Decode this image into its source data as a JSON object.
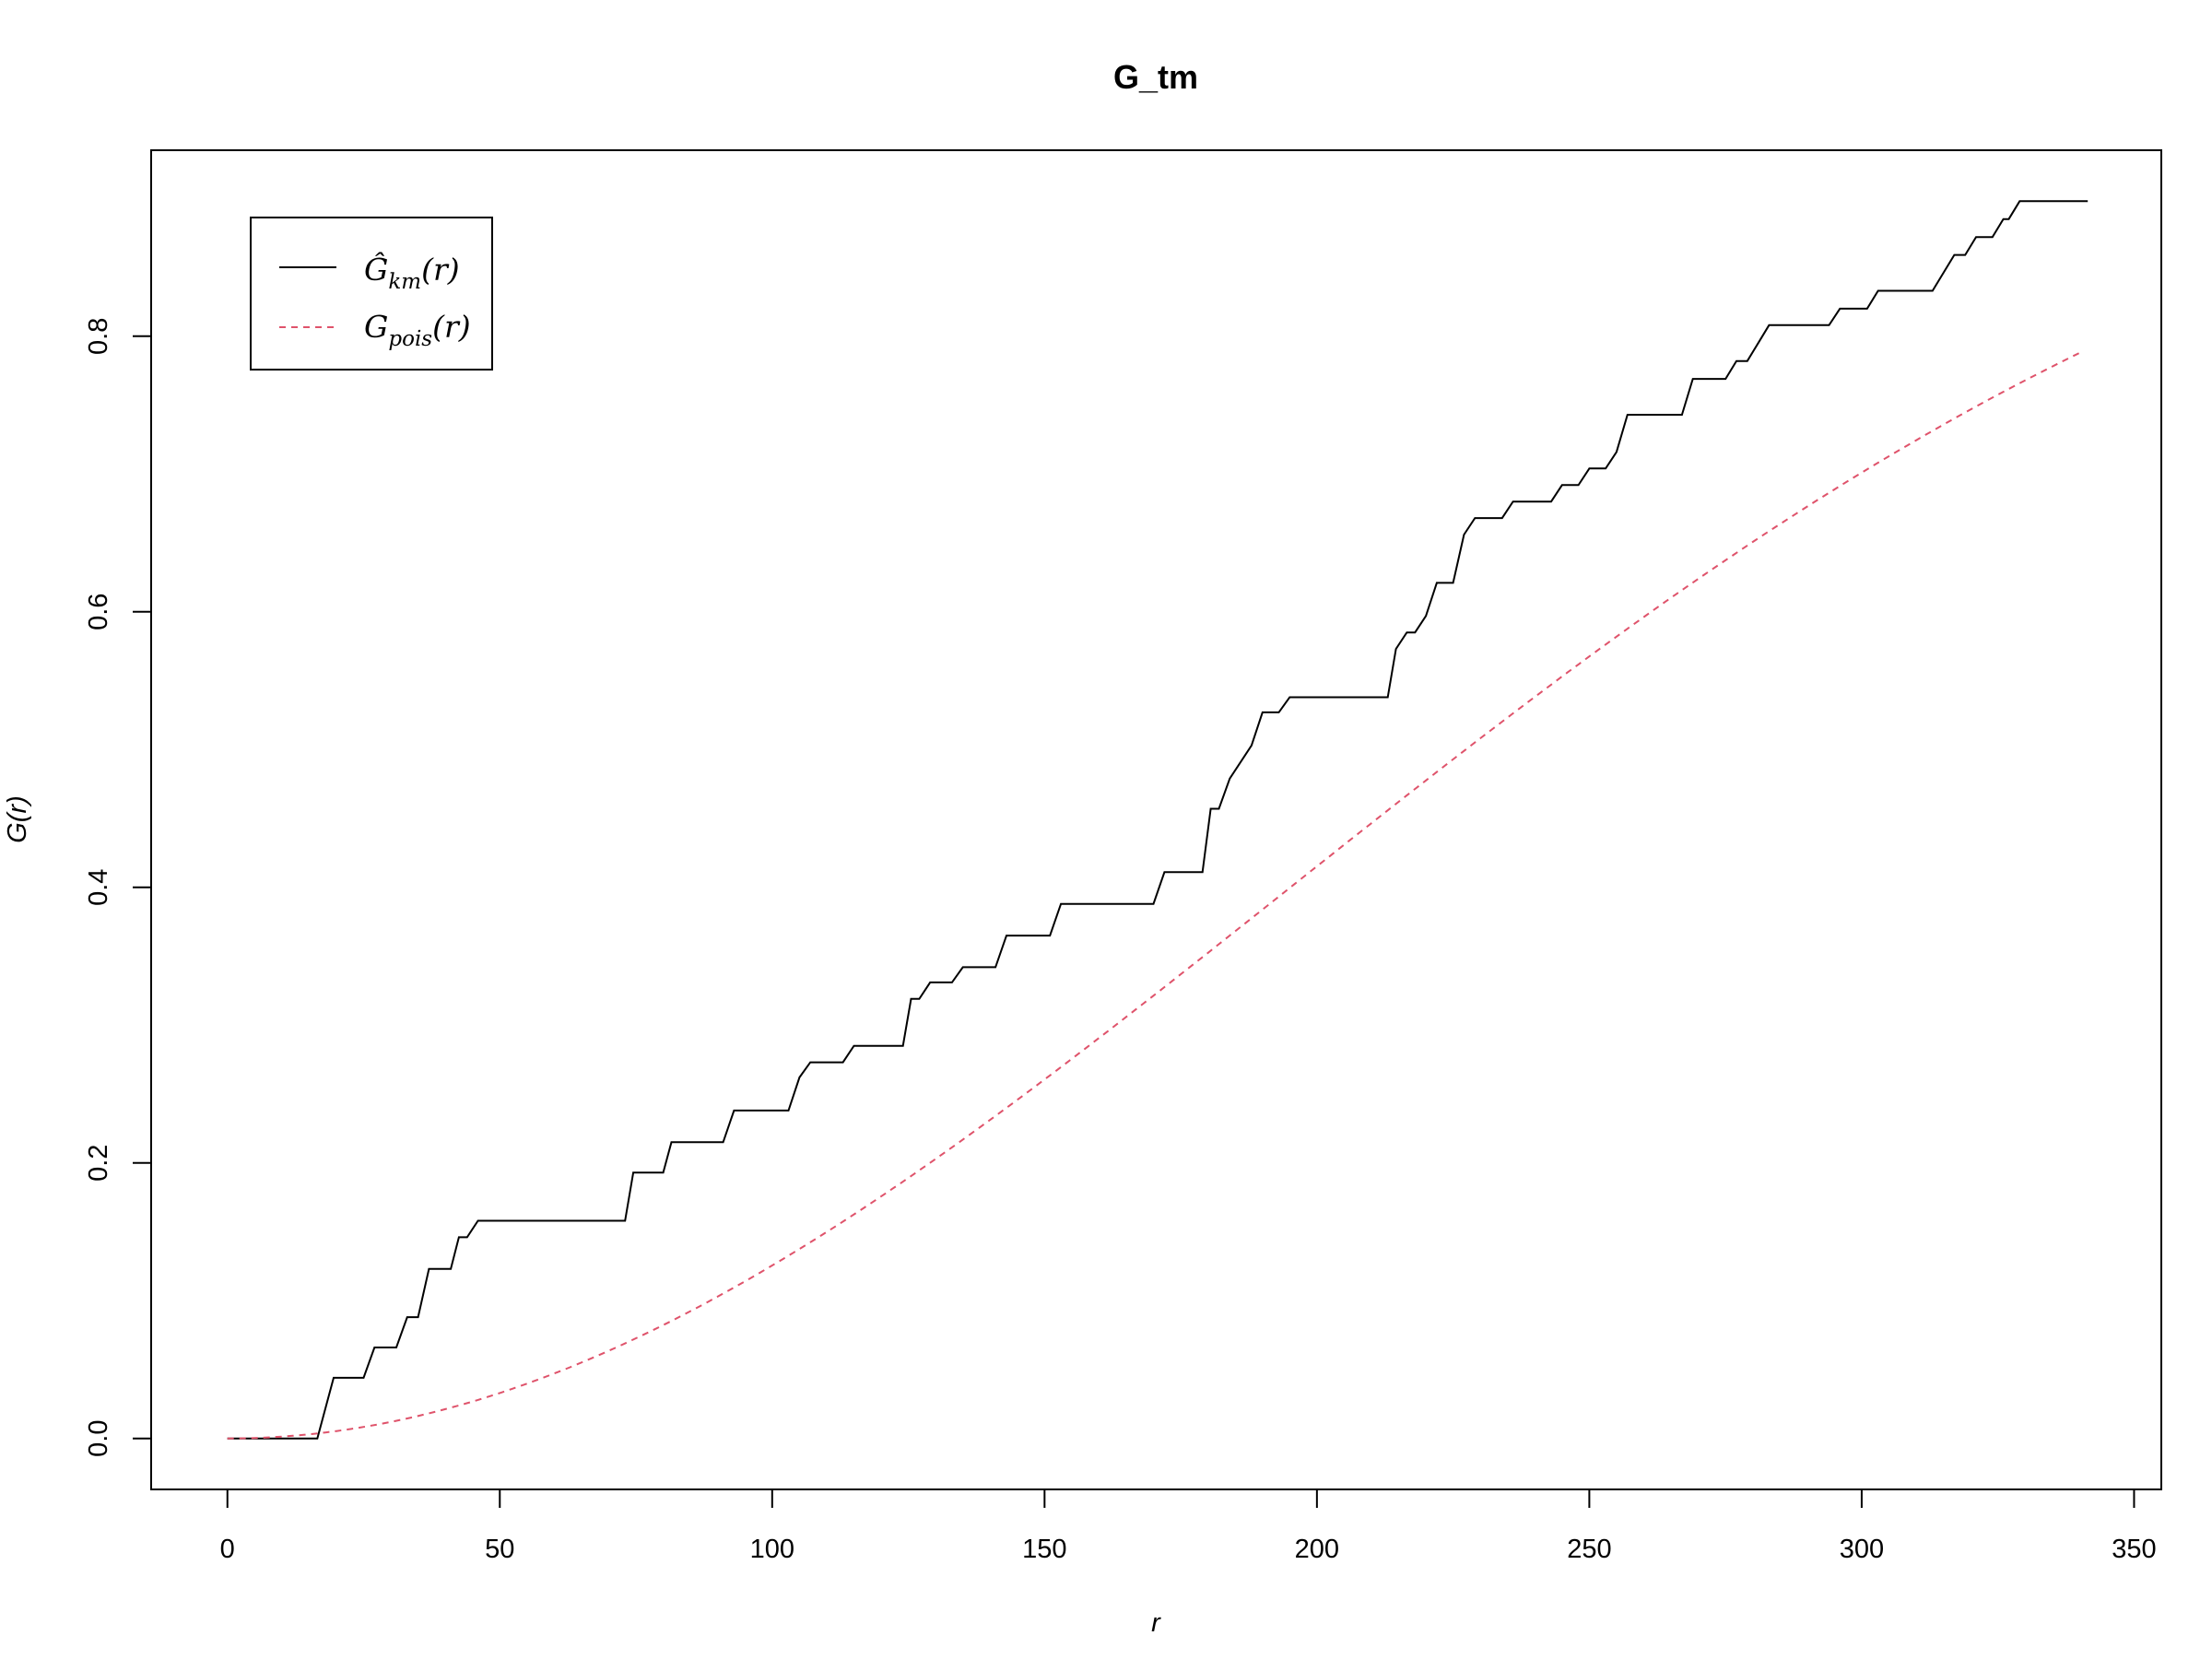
{
  "chart_data": {
    "type": "line",
    "title": "G_tm",
    "xlabel": "r",
    "ylabel": "G(r)",
    "xlim": [
      -14,
      355
    ],
    "ylim": [
      -0.037,
      0.935
    ],
    "x_ticks": [
      0,
      50,
      100,
      150,
      200,
      250,
      300,
      350
    ],
    "y_ticks": [
      0.0,
      0.2,
      0.4,
      0.6,
      0.8
    ],
    "grid": false,
    "legend_position": "top-left",
    "legend": {
      "km": {
        "main": "Ĝ",
        "sub": "km",
        "arg": "(r)"
      },
      "pois": {
        "main": "G",
        "sub": "pois",
        "arg": "(r)"
      }
    },
    "series": [
      {
        "key": "km",
        "color": "#000000",
        "dash": "solid",
        "points": [
          [
            0,
            0.0
          ],
          [
            16.5,
            0.0
          ],
          [
            19.5,
            0.044
          ],
          [
            25,
            0.044
          ],
          [
            27,
            0.066
          ],
          [
            31,
            0.066
          ],
          [
            33,
            0.088
          ],
          [
            35,
            0.088
          ],
          [
            37,
            0.123
          ],
          [
            41,
            0.123
          ],
          [
            42.5,
            0.146
          ],
          [
            44,
            0.146
          ],
          [
            46,
            0.158
          ],
          [
            73,
            0.158
          ],
          [
            74.5,
            0.193
          ],
          [
            80,
            0.193
          ],
          [
            81.5,
            0.215
          ],
          [
            91,
            0.215
          ],
          [
            93,
            0.238
          ],
          [
            103,
            0.238
          ],
          [
            105,
            0.262
          ],
          [
            107,
            0.273
          ],
          [
            113,
            0.273
          ],
          [
            115,
            0.285
          ],
          [
            124,
            0.285
          ],
          [
            125.5,
            0.319
          ],
          [
            127,
            0.319
          ],
          [
            129,
            0.331
          ],
          [
            133,
            0.331
          ],
          [
            135,
            0.342
          ],
          [
            141,
            0.342
          ],
          [
            143,
            0.365
          ],
          [
            151,
            0.365
          ],
          [
            153,
            0.388
          ],
          [
            170,
            0.388
          ],
          [
            172,
            0.411
          ],
          [
            179,
            0.411
          ],
          [
            180.5,
            0.457
          ],
          [
            182,
            0.457
          ],
          [
            184,
            0.479
          ],
          [
            188,
            0.503
          ],
          [
            190,
            0.527
          ],
          [
            193,
            0.527
          ],
          [
            195,
            0.538
          ],
          [
            213,
            0.538
          ],
          [
            214.5,
            0.573
          ],
          [
            216.5,
            0.585
          ],
          [
            218,
            0.585
          ],
          [
            220,
            0.597
          ],
          [
            222,
            0.621
          ],
          [
            225,
            0.621
          ],
          [
            227,
            0.656
          ],
          [
            229,
            0.668
          ],
          [
            234,
            0.668
          ],
          [
            236,
            0.68
          ],
          [
            243,
            0.68
          ],
          [
            245,
            0.692
          ],
          [
            248,
            0.692
          ],
          [
            250,
            0.704
          ],
          [
            253,
            0.704
          ],
          [
            255,
            0.716
          ],
          [
            257,
            0.743
          ],
          [
            267,
            0.743
          ],
          [
            269,
            0.769
          ],
          [
            275,
            0.769
          ],
          [
            277,
            0.782
          ],
          [
            279,
            0.782
          ],
          [
            281,
            0.795
          ],
          [
            283,
            0.808
          ],
          [
            294,
            0.808
          ],
          [
            296,
            0.82
          ],
          [
            301,
            0.82
          ],
          [
            303,
            0.833
          ],
          [
            313,
            0.833
          ],
          [
            317,
            0.859
          ],
          [
            319,
            0.859
          ],
          [
            321,
            0.872
          ],
          [
            324,
            0.872
          ],
          [
            326,
            0.885
          ],
          [
            327,
            0.885
          ],
          [
            329,
            0.898
          ],
          [
            341.5,
            0.898
          ]
        ]
      },
      {
        "key": "pois",
        "color": "#DF536B",
        "dash": "dashed",
        "lambda": 4.27e-06,
        "x_max": 341.5
      }
    ]
  }
}
